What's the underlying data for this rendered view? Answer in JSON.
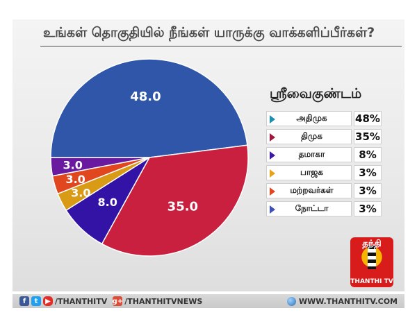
{
  "title": "உங்கள் தொகுதியில் நீங்கள் யாருக்கு வாக்களிப்பீர்கள்?",
  "legend_title": "ஸ்ரீவைகுண்டம்",
  "chart_data": {
    "type": "pie",
    "title": "உங்கள் தொகுதியில் நீங்கள் யாருக்கு வாக்களிப்பீர்கள்?",
    "subtitle": "ஸ்ரீவைகுண்டம்",
    "slices": [
      {
        "name": "அதிமுக",
        "value": 48.0,
        "label": "48.0",
        "legend_value": "48%",
        "color": "#2f56a8"
      },
      {
        "name": "திமுக",
        "value": 35.0,
        "label": "35.0",
        "legend_value": "35%",
        "color": "#c8203e"
      },
      {
        "name": "தமாகா",
        "value": 8.0,
        "label": "8.0",
        "legend_value": "8%",
        "color": "#3312a6"
      },
      {
        "name": "பாஜக",
        "value": 3.0,
        "label": "3.0",
        "legend_value": "3%",
        "color": "#d99a16"
      },
      {
        "name": "மற்றவர்கள்",
        "value": 3.0,
        "label": "3.0",
        "legend_value": "3%",
        "color": "#e0471f"
      },
      {
        "name": "நோட்டா",
        "value": 3.0,
        "label": "3.0",
        "legend_value": "3%",
        "color": "#6a1a9e"
      }
    ],
    "legend_placement": "right"
  },
  "legend_markers": [
    "#1d8fb0",
    "#a0183c",
    "#3a1aa0",
    "#e6a21a",
    "#e0471f",
    "#3f51b5"
  ],
  "logo": {
    "head": "தந்தி",
    "text": "THANTHI TV"
  },
  "footer": {
    "facebook_icon": "f",
    "twitter_icon": "t",
    "youtube_icon": "▶",
    "handle1": "/THANTHITV",
    "gplus_icon": "g+",
    "handle2": "/THANTHITVNEWS",
    "website": "WWW.THANTHITV.COM"
  }
}
